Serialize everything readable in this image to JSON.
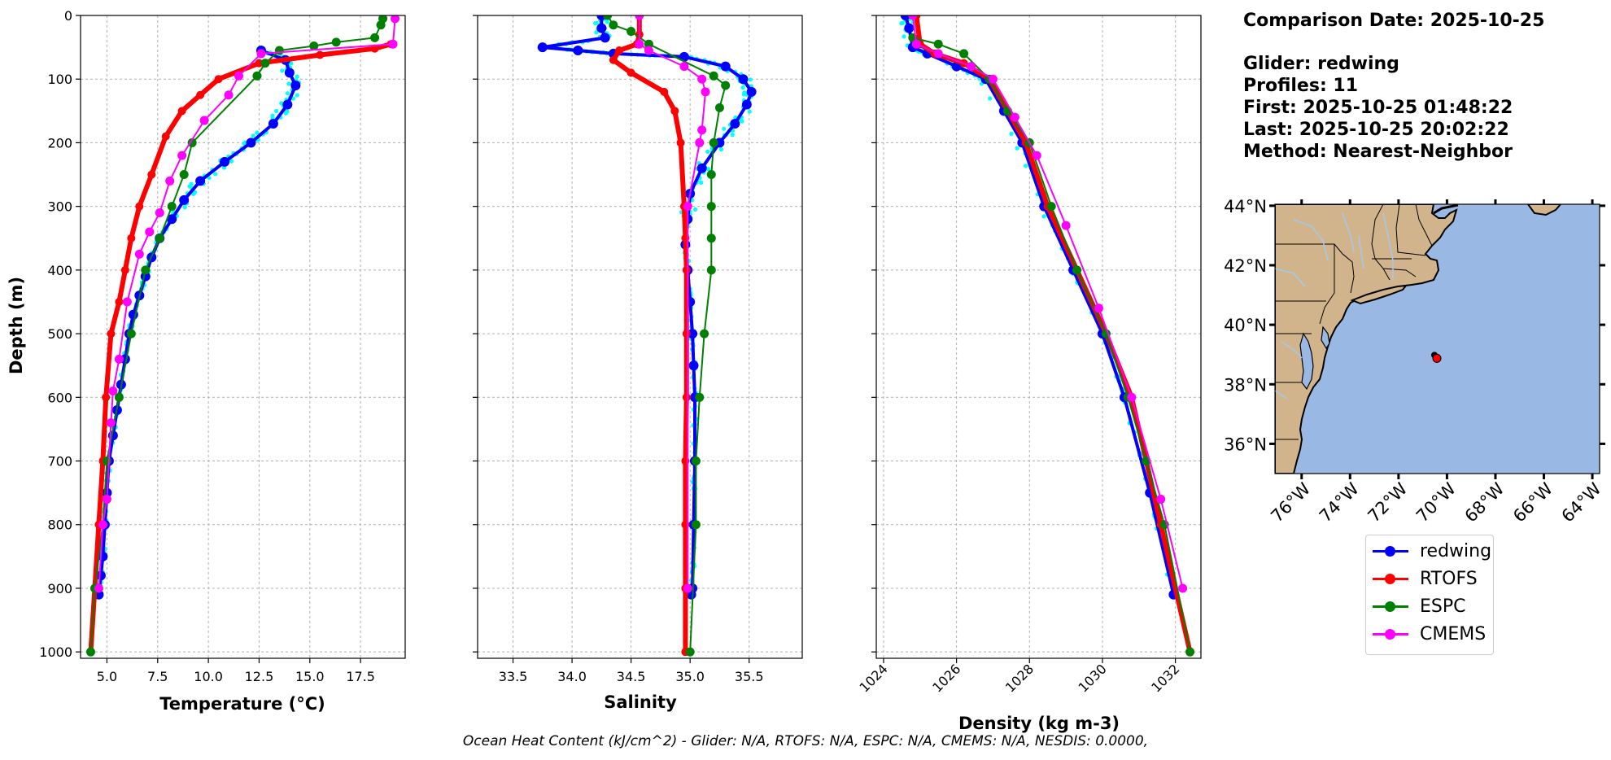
{
  "info": {
    "comparison_date": "Comparison Date: 2025-10-25",
    "glider": "Glider: redwing",
    "profiles": "Profiles: 11",
    "first": "First: 2025-10-25 01:48:22",
    "last": "Last: 2025-10-25 20:02:22",
    "method": "Method: Nearest-Neighbor"
  },
  "footer": "Ocean Heat Content (kJ/cm^2) - Glider: N/A,  RTOFS: N/A,  ESPC: N/A,  CMEMS: N/A,  NESDIS: 0.0000,",
  "colors": {
    "glider": "#0000ff",
    "glider_raw": "#00ffff",
    "rtofs": "#ff0000",
    "espc": "#008000",
    "cmems": "#ff00ff",
    "land": "#d2b48c",
    "ocean": "#9ab8e4",
    "river": "#a6c8e8"
  },
  "legend": [
    {
      "label": "redwing",
      "color": "#0000ff"
    },
    {
      "label": "RTOFS",
      "color": "#ff0000"
    },
    {
      "label": "ESPC",
      "color": "#008000"
    },
    {
      "label": "CMEMS",
      "color": "#ff00ff"
    }
  ],
  "chart_data": [
    {
      "type": "line",
      "xlabel": "Temperature (°C)",
      "ylabel": "Depth (m)",
      "xlim": [
        3.7,
        19.7
      ],
      "ylim": [
        1010,
        0
      ],
      "xticks": [
        "5.0",
        "7.5",
        "10.0",
        "12.5",
        "15.0",
        "17.5"
      ],
      "yticks": [
        "0",
        "100",
        "200",
        "300",
        "400",
        "500",
        "600",
        "700",
        "800",
        "900",
        "1000"
      ],
      "grid": true,
      "series": [
        {
          "name": "redwing",
          "x": [
            12.6,
            13.8,
            14.0,
            14.3,
            13.9,
            13.2,
            12.1,
            10.8,
            9.6,
            8.8,
            8.2,
            7.6,
            7.2,
            6.9,
            6.6,
            6.3,
            6.1,
            5.9,
            5.7,
            5.5,
            5.3,
            5.1,
            5.0,
            4.9,
            4.8,
            4.7,
            4.6
          ],
          "depth": [
            55,
            70,
            90,
            110,
            140,
            170,
            200,
            230,
            260,
            290,
            320,
            350,
            380,
            410,
            440,
            470,
            500,
            540,
            580,
            620,
            660,
            700,
            750,
            800,
            850,
            880,
            910
          ]
        },
        {
          "name": "RTOFS",
          "x": [
            19.0,
            18.2,
            15.5,
            12.5,
            10.5,
            9.6,
            8.7,
            7.9,
            7.2,
            6.6,
            6.2,
            5.9,
            5.6,
            5.2,
            4.95,
            4.8,
            4.6,
            4.4,
            4.2
          ],
          "depth": [
            45,
            52,
            62,
            75,
            100,
            125,
            150,
            190,
            250,
            300,
            350,
            400,
            450,
            500,
            600,
            700,
            800,
            900,
            1000
          ]
        },
        {
          "name": "ESPC",
          "x": [
            18.6,
            18.5,
            18.2,
            16.3,
            15.2,
            13.5,
            12.8,
            12.4,
            9.2,
            8.8,
            8.2,
            7.6,
            6.9,
            6.2,
            5.6,
            5.0,
            4.8,
            4.4,
            4.2
          ],
          "depth": [
            5,
            15,
            35,
            42,
            48,
            55,
            75,
            95,
            200,
            250,
            300,
            350,
            400,
            500,
            600,
            700,
            800,
            900,
            1000
          ]
        },
        {
          "name": "CMEMS",
          "x": [
            19.2,
            19.1,
            12.6,
            11.5,
            11.0,
            9.8,
            8.7,
            8.1,
            7.6,
            7.1,
            6.6,
            6.0,
            5.6,
            5.3,
            5.2,
            5.0,
            4.8,
            4.6
          ],
          "depth": [
            5,
            45,
            60,
            95,
            125,
            165,
            220,
            260,
            310,
            340,
            375,
            450,
            540,
            590,
            640,
            760,
            800,
            900
          ]
        }
      ]
    },
    {
      "type": "line",
      "xlabel": "Salinity",
      "xlim": [
        33.2,
        35.95
      ],
      "ylim": [
        1010,
        0
      ],
      "xticks": [
        "33.5",
        "34.0",
        "34.5",
        "35.0",
        "35.5"
      ],
      "grid": true,
      "series": [
        {
          "name": "redwing",
          "x": [
            34.25,
            34.25,
            34.28,
            33.75,
            34.05,
            34.35,
            34.95,
            35.3,
            35.45,
            35.52,
            35.48,
            35.38,
            35.25,
            35.1,
            35.0,
            34.98,
            34.96,
            34.98,
            35.0,
            35.02,
            35.03,
            35.04,
            35.04,
            35.03,
            35.02,
            35.01
          ],
          "depth": [
            0,
            20,
            35,
            50,
            55,
            60,
            65,
            80,
            100,
            120,
            140,
            170,
            200,
            240,
            280,
            320,
            360,
            400,
            450,
            500,
            550,
            600,
            700,
            800,
            900,
            910
          ]
        },
        {
          "name": "RTOFS",
          "x": [
            34.57,
            34.57,
            34.55,
            34.4,
            34.35,
            34.5,
            34.78,
            34.87,
            34.92,
            34.95,
            34.96,
            34.97,
            34.97,
            34.97,
            34.96,
            34.96,
            34.96,
            34.96
          ],
          "depth": [
            0,
            30,
            45,
            55,
            70,
            90,
            120,
            150,
            200,
            300,
            350,
            400,
            500,
            600,
            700,
            800,
            900,
            1000
          ]
        },
        {
          "name": "ESPC",
          "x": [
            34.3,
            34.35,
            34.5,
            34.65,
            35.2,
            35.3,
            35.25,
            35.2,
            35.18,
            35.18,
            35.18,
            35.18,
            35.12,
            35.08,
            35.05,
            35.05,
            35.0
          ],
          "depth": [
            0,
            15,
            25,
            45,
            95,
            110,
            145,
            200,
            250,
            300,
            350,
            400,
            500,
            600,
            700,
            800,
            1000
          ]
        },
        {
          "name": "CMEMS",
          "x": [
            34.57,
            34.57,
            34.65,
            34.95,
            35.1,
            35.13,
            35.1,
            35.08,
            34.98,
            34.98
          ],
          "depth": [
            0,
            45,
            55,
            80,
            100,
            120,
            180,
            200,
            300,
            900
          ]
        }
      ]
    },
    {
      "type": "line",
      "xlabel": "Density (kg m-3)",
      "xlim": [
        1023.8,
        1032.7
      ],
      "ylim": [
        1010,
        0
      ],
      "xticks": [
        "1024",
        "1026",
        "1028",
        "1030",
        "1032"
      ],
      "grid": true,
      "series": [
        {
          "name": "redwing",
          "x": [
            1024.6,
            1024.7,
            1024.8,
            1025.2,
            1026.0,
            1026.8,
            1027.3,
            1027.8,
            1028.4,
            1029.2,
            1030.0,
            1030.6,
            1031.3,
            1031.95
          ],
          "depth": [
            0,
            20,
            50,
            60,
            80,
            100,
            150,
            200,
            300,
            400,
            500,
            600,
            750,
            910
          ]
        },
        {
          "name": "RTOFS",
          "x": [
            1024.9,
            1025.0,
            1025.4,
            1026.2,
            1026.9,
            1027.4,
            1027.9,
            1028.5,
            1029.3,
            1030.1,
            1030.8,
            1031.6,
            1032.4
          ],
          "depth": [
            0,
            45,
            60,
            75,
            100,
            150,
            200,
            300,
            400,
            500,
            600,
            800,
            1000
          ]
        },
        {
          "name": "ESPC",
          "x": [
            1024.8,
            1025.5,
            1026.2,
            1026.9,
            1027.4,
            1028.0,
            1028.6,
            1029.3,
            1030.1,
            1030.7,
            1031.2,
            1031.7,
            1032.4
          ],
          "depth": [
            35,
            45,
            60,
            100,
            150,
            200,
            300,
            400,
            500,
            600,
            700,
            800,
            1000
          ]
        },
        {
          "name": "CMEMS",
          "x": [
            1024.8,
            1024.9,
            1025.5,
            1026.4,
            1027.0,
            1027.6,
            1028.2,
            1029.0,
            1029.9,
            1030.8,
            1031.6,
            1032.2
          ],
          "depth": [
            0,
            45,
            60,
            80,
            100,
            160,
            220,
            330,
            460,
            600,
            760,
            900
          ]
        }
      ]
    },
    {
      "type": "map",
      "lat_ticks": [
        "44°N",
        "42°N",
        "40°N",
        "38°N",
        "36°N"
      ],
      "lon_ticks": [
        "76°W",
        "74°W",
        "72°W",
        "70°W",
        "68°W",
        "66°W",
        "64°W"
      ],
      "lat_range": [
        35,
        44.05
      ],
      "lon_range": [
        -77.1,
        -63.7
      ],
      "glider_position": {
        "lon": -70.45,
        "lat": 38.9
      }
    }
  ]
}
